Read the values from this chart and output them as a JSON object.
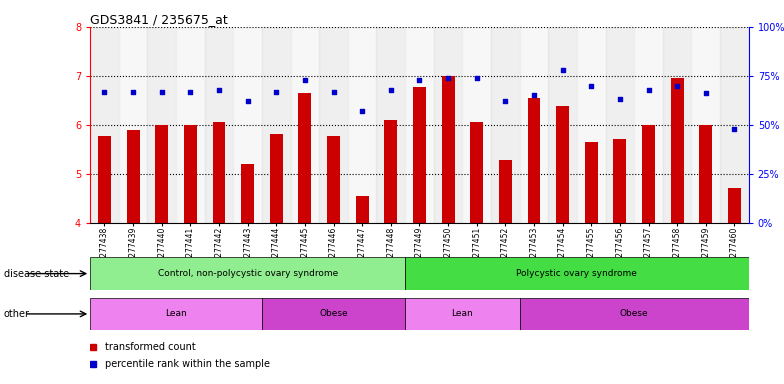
{
  "title": "GDS3841 / 235675_at",
  "samples": [
    "GSM277438",
    "GSM277439",
    "GSM277440",
    "GSM277441",
    "GSM277442",
    "GSM277443",
    "GSM277444",
    "GSM277445",
    "GSM277446",
    "GSM277447",
    "GSM277448",
    "GSM277449",
    "GSM277450",
    "GSM277451",
    "GSM277452",
    "GSM277453",
    "GSM277454",
    "GSM277455",
    "GSM277456",
    "GSM277457",
    "GSM277458",
    "GSM277459",
    "GSM277460"
  ],
  "bar_values": [
    5.78,
    5.9,
    6.0,
    6.0,
    6.05,
    5.2,
    5.82,
    6.65,
    5.78,
    4.55,
    6.1,
    6.78,
    7.0,
    6.05,
    5.28,
    6.55,
    6.38,
    5.65,
    5.7,
    6.0,
    6.95,
    6.0,
    4.7
  ],
  "dot_values": [
    67,
    67,
    67,
    67,
    68,
    62,
    67,
    73,
    67,
    57,
    68,
    73,
    74,
    74,
    62,
    65,
    78,
    70,
    63,
    68,
    70,
    66,
    48
  ],
  "ylim_left": [
    4,
    8
  ],
  "ylim_right": [
    0,
    100
  ],
  "yticks_left": [
    4,
    5,
    6,
    7,
    8
  ],
  "yticks_right": [
    0,
    25,
    50,
    75,
    100
  ],
  "ytick_labels_right": [
    "0%",
    "25%",
    "50%",
    "75%",
    "100%"
  ],
  "bar_color": "#cc0000",
  "dot_color": "#0000cc",
  "bg_color": "#ffffff",
  "disease_state_groups": [
    {
      "label": "Control, non-polycystic ovary syndrome",
      "start": 0,
      "end": 10,
      "color": "#90ee90"
    },
    {
      "label": "Polycystic ovary syndrome",
      "start": 11,
      "end": 22,
      "color": "#44dd44"
    }
  ],
  "other_groups": [
    {
      "label": "Lean",
      "start": 0,
      "end": 5,
      "color": "#ee82ee"
    },
    {
      "label": "Obese",
      "start": 6,
      "end": 10,
      "color": "#cc44cc"
    },
    {
      "label": "Lean",
      "start": 11,
      "end": 14,
      "color": "#ee82ee"
    },
    {
      "label": "Obese",
      "start": 15,
      "end": 22,
      "color": "#cc44cc"
    }
  ],
  "legend_items": [
    {
      "label": "transformed count",
      "color": "#cc0000"
    },
    {
      "label": "percentile rank within the sample",
      "color": "#0000cc"
    }
  ],
  "disease_state_label": "disease state",
  "other_label": "other"
}
